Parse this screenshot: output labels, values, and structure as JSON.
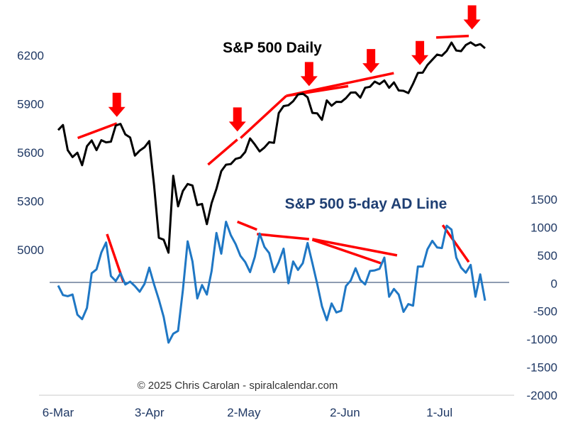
{
  "chart_data": [
    {
      "type": "line",
      "title": "S&P 500 Daily",
      "ylim": [
        5000,
        6200
      ],
      "yticks": [
        "6200",
        "5900",
        "5600",
        "5300",
        "5000"
      ],
      "x_ticks": [
        "6-Mar",
        "3-Apr",
        "2-May",
        "2-Jun",
        "1-Jul"
      ],
      "color": "#000000",
      "series": [
        {
          "x": [
            "2025-03-06",
            "2025-03-07",
            "2025-03-10",
            "2025-03-11",
            "2025-03-12",
            "2025-03-13",
            "2025-03-14",
            "2025-03-17",
            "2025-03-18",
            "2025-03-19",
            "2025-03-20",
            "2025-03-21",
            "2025-03-24",
            "2025-03-25",
            "2025-03-26",
            "2025-03-27",
            "2025-03-28",
            "2025-03-31",
            "2025-04-01",
            "2025-04-02",
            "2025-04-03",
            "2025-04-04",
            "2025-04-07",
            "2025-04-08",
            "2025-04-09",
            "2025-04-10",
            "2025-04-11",
            "2025-04-14",
            "2025-04-15",
            "2025-04-16",
            "2025-04-17",
            "2025-04-21",
            "2025-04-22",
            "2025-04-23",
            "2025-04-24",
            "2025-04-25",
            "2025-04-28",
            "2025-04-29",
            "2025-04-30",
            "2025-05-01",
            "2025-05-02",
            "2025-05-05",
            "2025-05-06",
            "2025-05-07",
            "2025-05-08",
            "2025-05-09",
            "2025-05-12",
            "2025-05-13",
            "2025-05-14",
            "2025-05-15",
            "2025-05-16",
            "2025-05-19",
            "2025-05-20",
            "2025-05-21",
            "2025-05-22",
            "2025-05-23",
            "2025-05-27",
            "2025-05-28",
            "2025-05-29",
            "2025-05-30",
            "2025-06-02",
            "2025-06-03",
            "2025-06-04",
            "2025-06-05",
            "2025-06-06",
            "2025-06-09",
            "2025-06-10",
            "2025-06-11",
            "2025-06-12",
            "2025-06-13",
            "2025-06-16",
            "2025-06-17",
            "2025-06-18",
            "2025-06-20",
            "2025-06-23",
            "2025-06-24",
            "2025-06-25",
            "2025-06-26",
            "2025-06-27",
            "2025-06-30",
            "2025-07-01",
            "2025-07-02",
            "2025-07-03",
            "2025-07-07",
            "2025-07-08",
            "2025-07-09",
            "2025-07-10",
            "2025-07-11",
            "2025-07-14",
            "2025-07-15"
          ],
          "values": [
            5739,
            5770,
            5615,
            5572,
            5599,
            5522,
            5639,
            5675,
            5615,
            5676,
            5663,
            5667,
            5767,
            5777,
            5712,
            5693,
            5581,
            5612,
            5633,
            5671,
            5396,
            5074,
            5062,
            4982,
            5457,
            5268,
            5363,
            5406,
            5397,
            5276,
            5283,
            5158,
            5288,
            5376,
            5485,
            5525,
            5529,
            5561,
            5569,
            5604,
            5687,
            5650,
            5607,
            5631,
            5664,
            5660,
            5844,
            5887,
            5892,
            5917,
            5958,
            5964,
            5941,
            5845,
            5842,
            5802,
            5922,
            5889,
            5913,
            5912,
            5936,
            5970,
            5971,
            5939,
            6000,
            6006,
            6038,
            6022,
            6045,
            6000,
            6033,
            5983,
            5981,
            5967,
            6025,
            6092,
            6093,
            6141,
            6173,
            6205,
            6198,
            6227,
            6279,
            6230,
            6226,
            6264,
            6280,
            6260,
            6269,
            6244
          ]
        }
      ]
    },
    {
      "type": "line",
      "title": "S&P 500 5-day AD Line",
      "ylim": [
        -2000,
        1500
      ],
      "yticks": [
        "1500",
        "1000",
        "500",
        "0",
        "-500",
        "-1000",
        "-1500",
        "-2000"
      ],
      "color": "#1f77c4",
      "series": [
        {
          "x": [
            "2025-03-06",
            "2025-03-07",
            "2025-03-10",
            "2025-03-11",
            "2025-03-12",
            "2025-03-13",
            "2025-03-14",
            "2025-03-17",
            "2025-03-18",
            "2025-03-19",
            "2025-03-20",
            "2025-03-21",
            "2025-03-24",
            "2025-03-25",
            "2025-03-26",
            "2025-03-27",
            "2025-03-28",
            "2025-03-31",
            "2025-04-01",
            "2025-04-02",
            "2025-04-03",
            "2025-04-04",
            "2025-04-07",
            "2025-04-08",
            "2025-04-09",
            "2025-04-10",
            "2025-04-11",
            "2025-04-14",
            "2025-04-15",
            "2025-04-16",
            "2025-04-17",
            "2025-04-21",
            "2025-04-22",
            "2025-04-23",
            "2025-04-24",
            "2025-04-25",
            "2025-04-28",
            "2025-04-29",
            "2025-04-30",
            "2025-05-01",
            "2025-05-02",
            "2025-05-05",
            "2025-05-06",
            "2025-05-07",
            "2025-05-08",
            "2025-05-09",
            "2025-05-12",
            "2025-05-13",
            "2025-05-14",
            "2025-05-15",
            "2025-05-16",
            "2025-05-19",
            "2025-05-20",
            "2025-05-21",
            "2025-05-22",
            "2025-05-23",
            "2025-05-27",
            "2025-05-28",
            "2025-05-29",
            "2025-05-30",
            "2025-06-02",
            "2025-06-03",
            "2025-06-04",
            "2025-06-05",
            "2025-06-06",
            "2025-06-09",
            "2025-06-10",
            "2025-06-11",
            "2025-06-12",
            "2025-06-13",
            "2025-06-16",
            "2025-06-17",
            "2025-06-18",
            "2025-06-20",
            "2025-06-23",
            "2025-06-24",
            "2025-06-25",
            "2025-06-26",
            "2025-06-27",
            "2025-06-30",
            "2025-07-01",
            "2025-07-02",
            "2025-07-03",
            "2025-07-07",
            "2025-07-08",
            "2025-07-09",
            "2025-07-10",
            "2025-07-11",
            "2025-07-14",
            "2025-07-15"
          ],
          "values": [
            -40,
            -210,
            -230,
            -200,
            -560,
            -640,
            -440,
            180,
            250,
            550,
            730,
            130,
            40,
            180,
            -20,
            30,
            -50,
            -150,
            -10,
            280,
            -20,
            -290,
            -600,
            -1060,
            -900,
            -850,
            -120,
            750,
            390,
            -270,
            -30,
            -200,
            220,
            900,
            530,
            1100,
            860,
            700,
            490,
            380,
            200,
            470,
            890,
            650,
            540,
            200,
            380,
            620,
            0,
            390,
            240,
            360,
            720,
            360,
            -10,
            -410,
            -660,
            -360,
            -520,
            -490,
            -50,
            50,
            270,
            60,
            -20,
            220,
            230,
            260,
            460,
            -240,
            -100,
            -200,
            -510,
            -370,
            -400,
            300,
            300,
            610,
            760,
            640,
            630,
            1030,
            960,
            460,
            280,
            190,
            330,
            -240,
            160,
            -310
          ]
        }
      ]
    }
  ],
  "annotations": {
    "copyright": "© 2025 Chris Carolan - spiralcalendar.com"
  },
  "colors": {
    "price_line": "#000000",
    "ad_line": "#1f77c4",
    "annotation": "#ff0000",
    "zero_line": "#1f3864",
    "tick_text": "#1f3864"
  }
}
